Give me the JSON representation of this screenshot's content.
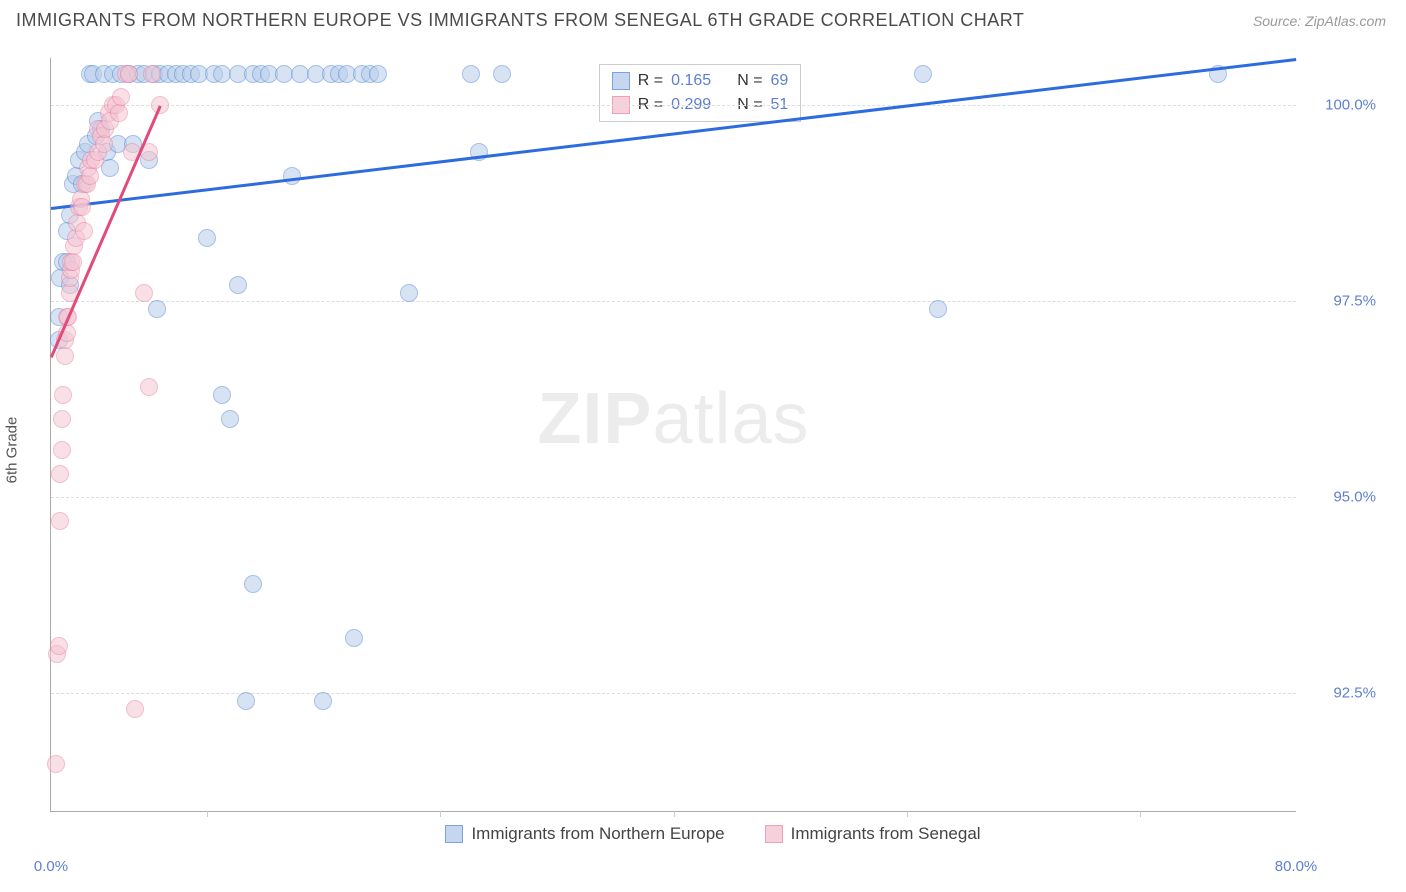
{
  "header": {
    "title": "IMMIGRANTS FROM NORTHERN EUROPE VS IMMIGRANTS FROM SENEGAL 6TH GRADE CORRELATION CHART",
    "source_label": "Source: ",
    "source_value": "ZipAtlas.com"
  },
  "watermark": {
    "bold": "ZIP",
    "light": "atlas"
  },
  "chart": {
    "type": "scatter",
    "y_axis_label": "6th Grade",
    "xlim": [
      0.0,
      80.0
    ],
    "ylim": [
      91.0,
      100.6
    ],
    "x_ticks": [
      0.0,
      80.0
    ],
    "x_tick_labels": [
      "0.0%",
      "80.0%"
    ],
    "x_minor_ticks": [
      10,
      25,
      40,
      55,
      70
    ],
    "y_ticks": [
      92.5,
      95.0,
      97.5,
      100.0
    ],
    "y_tick_labels": [
      "92.5%",
      "95.0%",
      "97.5%",
      "100.0%"
    ],
    "grid_color_dash": "#dddddd",
    "axis_color": "#aaaaaa",
    "label_color": "#5e7fcf",
    "background_color": "#ffffff",
    "point_radius": 9,
    "point_opacity": 0.55,
    "series": [
      {
        "name": "Immigrants from Northern Europe",
        "fill": "#b7cdea",
        "stroke": "#5a8ed6",
        "trend_color": "#2d6cdf",
        "R": "0.165",
        "N": "69",
        "trendline": {
          "x1": 0.0,
          "y1": 98.7,
          "x2": 80.0,
          "y2": 100.6
        },
        "points": [
          [
            0.5,
            97.0
          ],
          [
            0.5,
            97.3
          ],
          [
            0.6,
            97.8
          ],
          [
            0.8,
            98.0
          ],
          [
            1.0,
            98.4
          ],
          [
            1.0,
            98.0
          ],
          [
            1.2,
            97.7
          ],
          [
            1.2,
            98.6
          ],
          [
            1.4,
            99.0
          ],
          [
            1.6,
            99.1
          ],
          [
            1.8,
            99.3
          ],
          [
            2.0,
            99.0
          ],
          [
            2.2,
            99.4
          ],
          [
            2.4,
            99.5
          ],
          [
            2.5,
            100.4
          ],
          [
            2.7,
            100.4
          ],
          [
            2.9,
            99.6
          ],
          [
            3.0,
            99.8
          ],
          [
            3.2,
            99.7
          ],
          [
            3.4,
            100.4
          ],
          [
            3.6,
            99.4
          ],
          [
            3.8,
            99.2
          ],
          [
            4.0,
            100.4
          ],
          [
            4.3,
            99.5
          ],
          [
            4.5,
            100.4
          ],
          [
            5.0,
            100.4
          ],
          [
            5.3,
            99.5
          ],
          [
            5.6,
            100.4
          ],
          [
            6.0,
            100.4
          ],
          [
            6.3,
            99.3
          ],
          [
            6.6,
            100.4
          ],
          [
            6.8,
            97.4
          ],
          [
            7.0,
            100.4
          ],
          [
            7.5,
            100.4
          ],
          [
            8.0,
            100.4
          ],
          [
            8.5,
            100.4
          ],
          [
            9.0,
            100.4
          ],
          [
            9.5,
            100.4
          ],
          [
            10.0,
            98.3
          ],
          [
            10.5,
            100.4
          ],
          [
            11.0,
            100.4
          ],
          [
            11.0,
            96.3
          ],
          [
            11.5,
            96.0
          ],
          [
            12.0,
            100.4
          ],
          [
            12.0,
            97.7
          ],
          [
            12.5,
            92.4
          ],
          [
            13.0,
            100.4
          ],
          [
            13.0,
            93.9
          ],
          [
            13.5,
            100.4
          ],
          [
            14.0,
            100.4
          ],
          [
            15.0,
            100.4
          ],
          [
            15.5,
            99.1
          ],
          [
            16.0,
            100.4
          ],
          [
            17.0,
            100.4
          ],
          [
            17.5,
            92.4
          ],
          [
            18.0,
            100.4
          ],
          [
            18.5,
            100.4
          ],
          [
            19.0,
            100.4
          ],
          [
            19.5,
            93.2
          ],
          [
            20.0,
            100.4
          ],
          [
            20.5,
            100.4
          ],
          [
            21.0,
            100.4
          ],
          [
            23.0,
            97.6
          ],
          [
            27.0,
            100.4
          ],
          [
            27.5,
            99.4
          ],
          [
            29.0,
            100.4
          ],
          [
            56.0,
            100.4
          ],
          [
            57.0,
            97.4
          ],
          [
            75.0,
            100.4
          ]
        ]
      },
      {
        "name": "Immigrants from Senegal",
        "fill": "#f5c5d2",
        "stroke": "#e88aa8",
        "trend_color": "#e24a7a",
        "R": "0.299",
        "N": "51",
        "trendline": {
          "x1": 0.0,
          "y1": 96.8,
          "x2": 7.0,
          "y2": 100.0
        },
        "points": [
          [
            0.3,
            91.6
          ],
          [
            0.4,
            93.0
          ],
          [
            0.5,
            93.1
          ],
          [
            0.6,
            95.3
          ],
          [
            0.6,
            94.7
          ],
          [
            0.7,
            95.6
          ],
          [
            0.7,
            96.0
          ],
          [
            0.8,
            96.3
          ],
          [
            0.9,
            96.8
          ],
          [
            0.9,
            97.0
          ],
          [
            1.0,
            97.1
          ],
          [
            1.0,
            97.3
          ],
          [
            1.1,
            97.3
          ],
          [
            1.2,
            97.6
          ],
          [
            1.2,
            97.8
          ],
          [
            1.3,
            97.9
          ],
          [
            1.3,
            98.0
          ],
          [
            1.4,
            98.0
          ],
          [
            1.5,
            98.2
          ],
          [
            1.6,
            98.3
          ],
          [
            1.7,
            98.5
          ],
          [
            1.8,
            98.7
          ],
          [
            1.9,
            98.8
          ],
          [
            2.0,
            98.7
          ],
          [
            2.1,
            98.4
          ],
          [
            2.2,
            99.0
          ],
          [
            2.3,
            99.0
          ],
          [
            2.4,
            99.2
          ],
          [
            2.5,
            99.1
          ],
          [
            2.6,
            99.3
          ],
          [
            2.8,
            99.3
          ],
          [
            3.0,
            99.4
          ],
          [
            3.0,
            99.7
          ],
          [
            3.2,
            99.6
          ],
          [
            3.4,
            99.5
          ],
          [
            3.5,
            99.7
          ],
          [
            3.7,
            99.9
          ],
          [
            3.8,
            99.8
          ],
          [
            4.0,
            100.0
          ],
          [
            4.2,
            100.0
          ],
          [
            4.4,
            99.9
          ],
          [
            4.5,
            100.1
          ],
          [
            4.8,
            100.4
          ],
          [
            5.0,
            100.4
          ],
          [
            5.2,
            99.4
          ],
          [
            5.4,
            92.3
          ],
          [
            6.0,
            97.6
          ],
          [
            6.3,
            96.4
          ],
          [
            6.3,
            99.4
          ],
          [
            6.5,
            100.4
          ],
          [
            7.0,
            100.0
          ]
        ]
      }
    ]
  },
  "stats_box": {
    "r_label": "R  = ",
    "n_label": "N  = "
  },
  "bottom_legend": {
    "items": [
      "Immigrants from Northern Europe",
      "Immigrants from Senegal"
    ]
  }
}
